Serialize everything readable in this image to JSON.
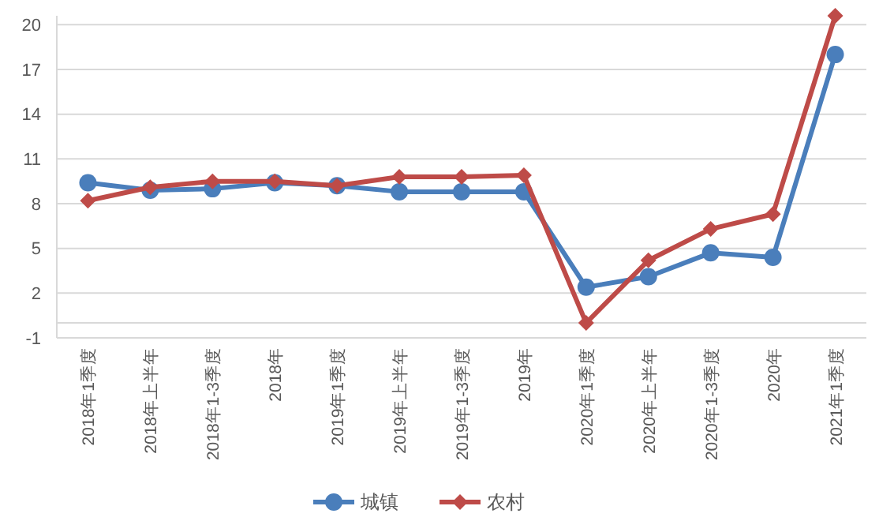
{
  "chart_data": {
    "type": "line",
    "categories": [
      "2018年1季度",
      "2018年上半年",
      "2018年1-3季度",
      "2018年",
      "2019年1季度",
      "2019年上半年",
      "2019年1-3季度",
      "2019年",
      "2020年1季度",
      "2020年上半年",
      "2020年1-3季度",
      "2020年",
      "2021年1季度"
    ],
    "series": [
      {
        "name": "城镇",
        "color": "#4a7ebb",
        "marker": "circle",
        "values": [
          9.4,
          8.9,
          9.0,
          9.4,
          9.2,
          8.8,
          8.8,
          8.8,
          2.4,
          3.1,
          4.7,
          4.4,
          18.0
        ]
      },
      {
        "name": "农村",
        "color": "#be4b48",
        "marker": "diamond",
        "values": [
          8.2,
          9.1,
          9.5,
          9.5,
          9.2,
          9.8,
          9.8,
          9.9,
          0.0,
          4.2,
          6.3,
          7.3,
          20.6
        ]
      }
    ],
    "ylim": [
      -1,
      20.6
    ],
    "yticks": [
      -1,
      2,
      5,
      8,
      11,
      14,
      17,
      20
    ],
    "grid": "y",
    "legend": "bottom",
    "line_style": "solid",
    "ref_lines": [
      {
        "axis": "y",
        "value": 0,
        "color": "#d9d9d9"
      }
    ]
  }
}
